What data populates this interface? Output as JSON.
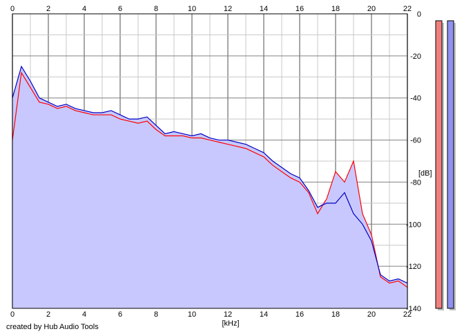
{
  "credit": "created by Hub Audio Tools",
  "chart_data": {
    "type": "area",
    "xlabel": "[kHz]",
    "ylabel": "[dB]",
    "xlim": [
      0,
      22
    ],
    "ylim": [
      -140,
      0
    ],
    "x_ticks": [
      "0",
      "2",
      "4",
      "6",
      "8",
      "10",
      "12",
      "14",
      "16",
      "18",
      "20",
      "22"
    ],
    "y_ticks": [
      "0",
      "-20",
      "-40",
      "-60",
      "-80",
      "-100",
      "-120",
      "-140"
    ],
    "grid": true,
    "colors": {
      "background": "#ffffff",
      "grid": "#c8c8c8",
      "grid_major": "#808080",
      "area_fill": "#c8c8ff",
      "channel_1": "#ff0000",
      "channel_2": "#0000c0",
      "meter_1": "#f08080",
      "meter_2": "#9090f0"
    },
    "series": [
      {
        "x": [
          0,
          0.5,
          1,
          1.5,
          2,
          2.5,
          3,
          3.5,
          4,
          4.5,
          5,
          5.5,
          6,
          6.5,
          7,
          7.5,
          8,
          8.5,
          9,
          9.5,
          10,
          10.5,
          11,
          11.5,
          12,
          12.5,
          13,
          13.5,
          14,
          14.5,
          15,
          15.5,
          16,
          16.5,
          17,
          17.5,
          18,
          18.5,
          19,
          19.5,
          20,
          20.5,
          21,
          21.5,
          22
        ],
        "values": [
          -60,
          -28,
          -35,
          -42,
          -43,
          -45,
          -44,
          -46,
          -47,
          -48,
          -48,
          -48,
          -50,
          -51,
          -52,
          -51,
          -55,
          -58,
          -58,
          -58,
          -59,
          -59,
          -60,
          -61,
          -62,
          -63,
          -64,
          -66,
          -68,
          -72,
          -75,
          -78,
          -80,
          -85,
          -95,
          -88,
          -75,
          -80,
          -70,
          -95,
          -105,
          -125,
          -128,
          -127,
          -130
        ]
      },
      {
        "x": [
          0,
          0.5,
          1,
          1.5,
          2,
          2.5,
          3,
          3.5,
          4,
          4.5,
          5,
          5.5,
          6,
          6.5,
          7,
          7.5,
          8,
          8.5,
          9,
          9.5,
          10,
          10.5,
          11,
          11.5,
          12,
          12.5,
          13,
          13.5,
          14,
          14.5,
          15,
          15.5,
          16,
          16.5,
          17,
          17.5,
          18,
          18.5,
          19,
          19.5,
          20,
          20.5,
          21,
          21.5,
          22
        ],
        "values": [
          -40,
          -25,
          -32,
          -40,
          -42,
          -44,
          -43,
          -45,
          -46,
          -47,
          -47,
          -46,
          -48,
          -50,
          -50,
          -49,
          -53,
          -57,
          -56,
          -57,
          -58,
          -57,
          -59,
          -60,
          -60,
          -61,
          -62,
          -64,
          -66,
          -70,
          -73,
          -76,
          -78,
          -84,
          -92,
          -90,
          -90,
          -85,
          -95,
          -100,
          -108,
          -124,
          -127,
          -126,
          -128
        ]
      }
    ],
    "meters": [
      {
        "value": 1
      },
      {
        "value": 1
      }
    ]
  }
}
